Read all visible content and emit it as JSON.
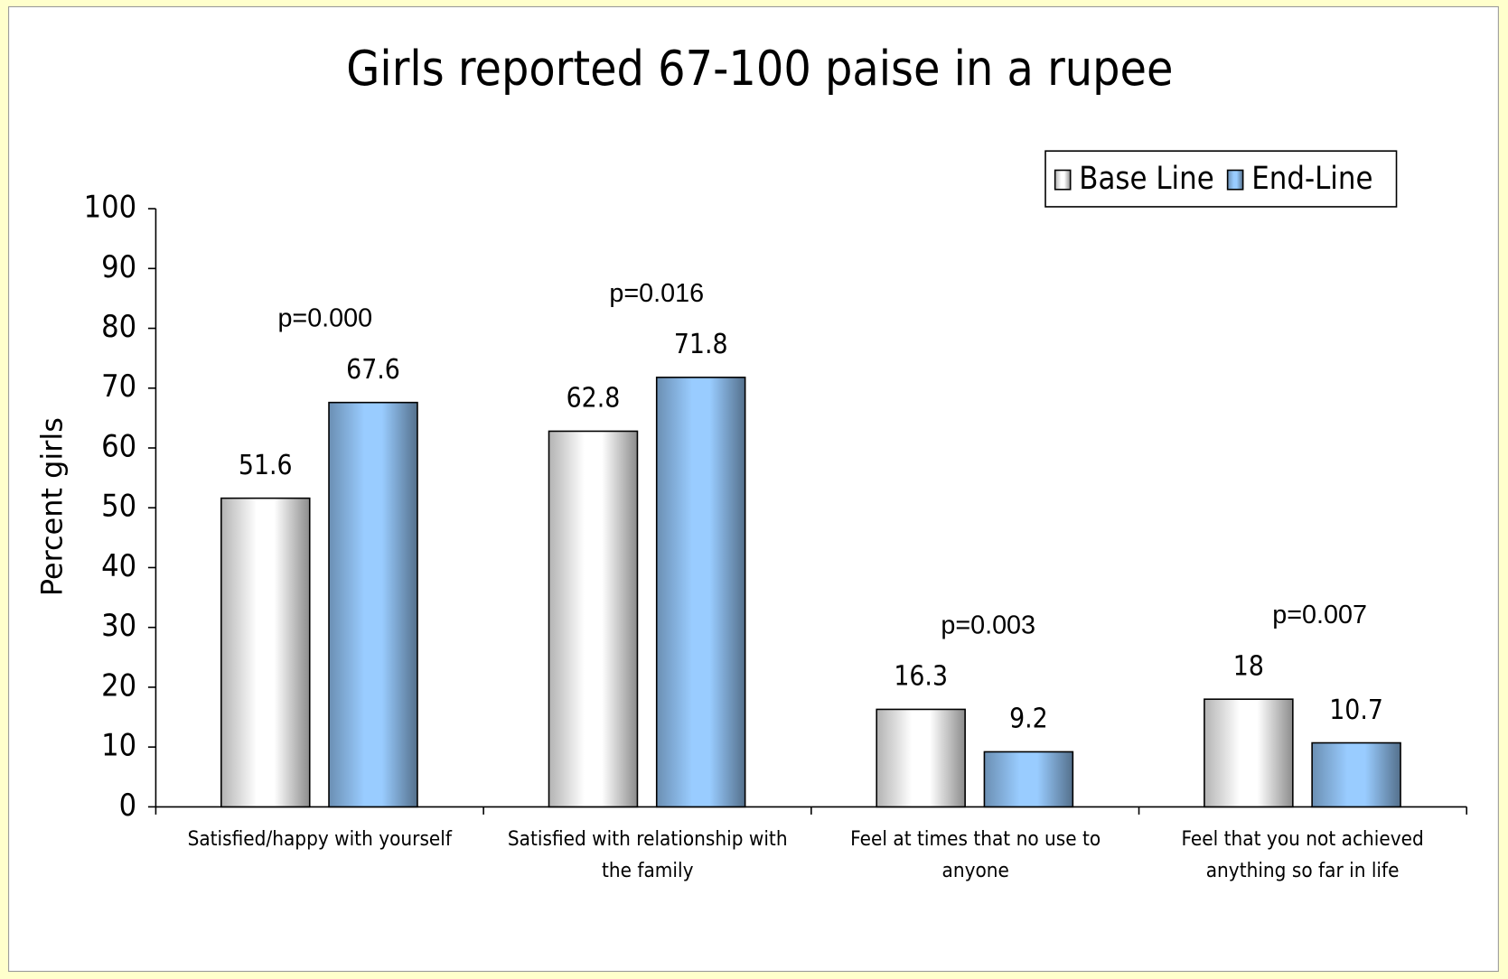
{
  "chart_data": {
    "type": "bar",
    "title": "Girls reported 67-100 paise in a rupee",
    "ylabel": "Percent girls",
    "categories": [
      "Satisfied/happy with yourself",
      "Satisfied with relationship with the family",
      "Feel at times that no use to anyone",
      "Feel that you not achieved anything so far in life"
    ],
    "series": [
      {
        "name": "Base Line",
        "color": "#ffffff",
        "values": [
          51.6,
          62.8,
          16.3,
          18
        ]
      },
      {
        "name": "End-Line",
        "color": "#99ccff",
        "values": [
          67.6,
          71.8,
          9.2,
          10.7
        ]
      }
    ],
    "annotations": [
      "p=0.000",
      "p=0.016",
      "p=0.003",
      "p=0.007"
    ],
    "ylim": [
      0,
      100
    ],
    "yticks": [
      0,
      10,
      20,
      30,
      40,
      50,
      60,
      70,
      80,
      90,
      100
    ],
    "legend": "top-right"
  }
}
